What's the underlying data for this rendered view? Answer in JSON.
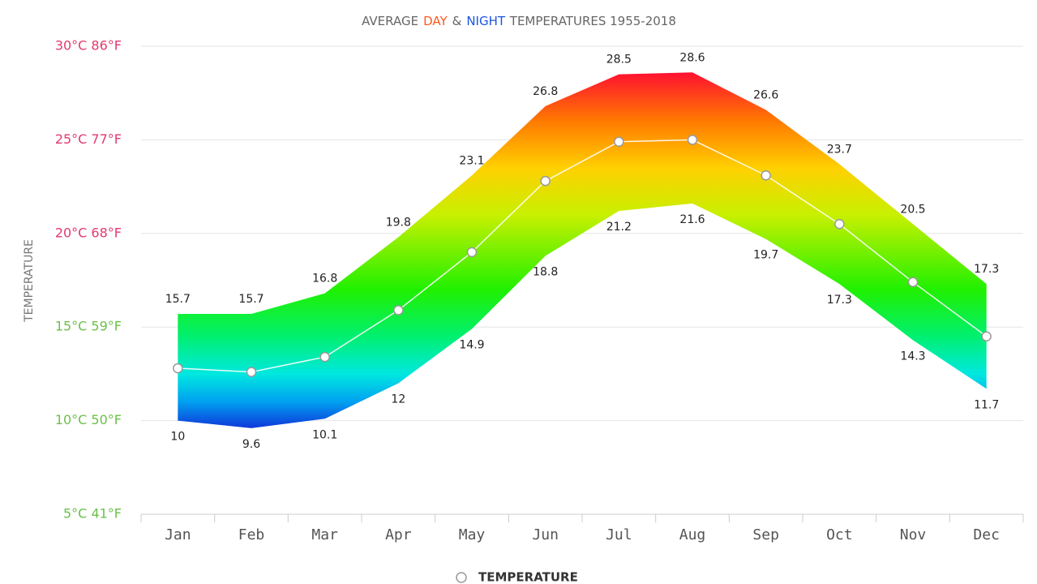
{
  "chart_data": {
    "type": "temperature-band",
    "subtitle": [
      {
        "text": "AVERAGE",
        "color": "#666666"
      },
      {
        "text": "DAY",
        "color": "#ff5a1f"
      },
      {
        "text": "&",
        "color": "#666666"
      },
      {
        "text": "NIGHT",
        "color": "#1a56e0"
      },
      {
        "text": "TEMPERATURES 1955-2018",
        "color": "#666666"
      }
    ],
    "y_label": "TEMPERATURE",
    "categories": [
      "Jan",
      "Feb",
      "Mar",
      "Apr",
      "May",
      "Jun",
      "Jul",
      "Aug",
      "Sep",
      "Oct",
      "Nov",
      "Dec"
    ],
    "day": {
      "values": [
        15.7,
        15.7,
        16.8,
        19.8,
        23.1,
        26.8,
        28.5,
        28.6,
        26.6,
        23.7,
        20.5,
        17.3
      ]
    },
    "night": {
      "values": [
        10,
        9.6,
        10.1,
        12,
        14.9,
        18.8,
        21.2,
        21.6,
        19.7,
        17.3,
        14.3,
        11.7
      ]
    },
    "series": [
      {
        "name": "TEMPERATURE",
        "color": "#ffffff",
        "values": [
          12.8,
          12.6,
          13.4,
          15.9,
          19.0,
          22.8,
          24.9,
          25.0,
          23.1,
          20.5,
          17.4,
          14.5
        ]
      }
    ],
    "ylim": [
      5,
      30
    ],
    "yticks": [
      {
        "value": 5,
        "label": "5°C 41°F"
      },
      {
        "value": 10,
        "label": "10°C 50°F"
      },
      {
        "value": 15,
        "label": "15°C 59°F"
      },
      {
        "value": 20,
        "label": "20°C 68°F"
      },
      {
        "value": 25,
        "label": "25°C 77°F"
      },
      {
        "value": 30,
        "label": "30°C 86°F"
      }
    ],
    "ytick_colors": [
      "#6cc04a",
      "#6cc04a",
      "#6cc04a",
      "#e23a6e",
      "#e23a6e",
      "#e23a6e"
    ],
    "color_scale": [
      {
        "value": 9.5,
        "color": "#1030d8"
      },
      {
        "value": 11,
        "color": "#00a0f0"
      },
      {
        "value": 12.5,
        "color": "#00e8e0"
      },
      {
        "value": 14.5,
        "color": "#00f070"
      },
      {
        "value": 17,
        "color": "#20f000"
      },
      {
        "value": 21,
        "color": "#c8f000"
      },
      {
        "value": 23.5,
        "color": "#ffd000"
      },
      {
        "value": 26,
        "color": "#ff7a00"
      },
      {
        "value": 29,
        "color": "#ff0038"
      }
    ],
    "grid": true
  }
}
